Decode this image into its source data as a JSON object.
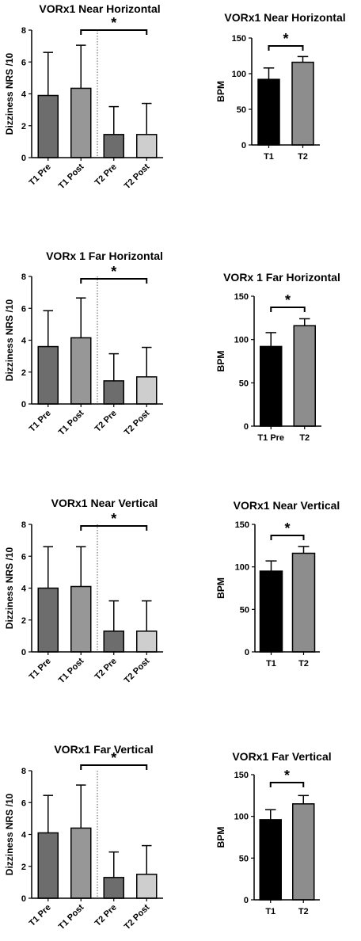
{
  "chart_data": [
    {
      "type": "bar",
      "title": "VORx1 Near Horizontal",
      "ylabel": "Dizziness NRS /10",
      "ylim": [
        0,
        8
      ],
      "yticks": [
        0,
        2,
        4,
        6,
        8
      ],
      "categories": [
        "T1 Pre",
        "T1 Post",
        "T2 Pre",
        "T2 Post"
      ],
      "values": [
        3.9,
        4.35,
        1.45,
        1.45
      ],
      "error": [
        2.7,
        2.7,
        1.75,
        1.95
      ],
      "colors": [
        "#6d6d6d",
        "#979797",
        "#6d6d6d",
        "#cecece"
      ],
      "significance": {
        "from": 1,
        "to": 3,
        "label": "*"
      },
      "divider_after": 1
    },
    {
      "type": "bar",
      "title": "VORx1 Near Horizontal",
      "ylabel": "BPM",
      "ylim": [
        0,
        150
      ],
      "yticks": [
        0,
        50,
        100,
        150
      ],
      "categories": [
        "T1",
        "T2"
      ],
      "values": [
        92,
        116
      ],
      "error": [
        16,
        8
      ],
      "colors": [
        "#000000",
        "#8d8d8d"
      ],
      "significance": {
        "from": 0,
        "to": 1,
        "label": "*"
      }
    },
    {
      "type": "bar",
      "title": "VORx 1 Far Horizontal",
      "ylabel": "Dizziness NRS /10",
      "ylim": [
        0,
        8
      ],
      "yticks": [
        0,
        2,
        4,
        6,
        8
      ],
      "categories": [
        "T1 Pre",
        "T1 Post",
        "T2 Pre",
        "T2 Post"
      ],
      "values": [
        3.6,
        4.15,
        1.45,
        1.7
      ],
      "error": [
        2.25,
        2.5,
        1.7,
        1.85
      ],
      "colors": [
        "#6d6d6d",
        "#979797",
        "#6d6d6d",
        "#cecece"
      ],
      "significance": {
        "from": 1,
        "to": 3,
        "label": "*"
      },
      "divider_after": 1
    },
    {
      "type": "bar",
      "title": "VORx 1 Far Horizontal",
      "ylabel": "BPM",
      "ylim": [
        0,
        150
      ],
      "yticks": [
        0,
        50,
        100,
        150
      ],
      "categories": [
        "T1 Pre",
        "T2"
      ],
      "values": [
        92,
        116
      ],
      "error": [
        16,
        8
      ],
      "colors": [
        "#000000",
        "#8d8d8d"
      ],
      "significance": {
        "from": 0,
        "to": 1,
        "label": "*"
      }
    },
    {
      "type": "bar",
      "title": "VORx1 Near Vertical",
      "ylabel": "Dizziness NRS /10",
      "ylim": [
        0,
        8
      ],
      "yticks": [
        0,
        2,
        4,
        6,
        8
      ],
      "categories": [
        "T1 Pre",
        "T1 Post",
        "T2 Pre",
        "T2 Post"
      ],
      "values": [
        4.0,
        4.1,
        1.3,
        1.3
      ],
      "error": [
        2.6,
        2.5,
        1.9,
        1.9
      ],
      "colors": [
        "#6d6d6d",
        "#979797",
        "#6d6d6d",
        "#cecece"
      ],
      "significance": {
        "from": 1,
        "to": 3,
        "label": "*"
      },
      "divider_after": 1
    },
    {
      "type": "bar",
      "title": "VORx1 Near Vertical",
      "ylabel": "BPM",
      "ylim": [
        0,
        150
      ],
      "yticks": [
        0,
        50,
        100,
        150
      ],
      "categories": [
        "T1",
        "T2"
      ],
      "values": [
        95,
        116
      ],
      "error": [
        12,
        8
      ],
      "colors": [
        "#000000",
        "#8d8d8d"
      ],
      "significance": {
        "from": 0,
        "to": 1,
        "label": "*"
      }
    },
    {
      "type": "bar",
      "title": "VORx1 Far Vertical",
      "ylabel": "Dizziness NRS /10",
      "ylim": [
        0,
        8
      ],
      "yticks": [
        0,
        2,
        4,
        6,
        8
      ],
      "categories": [
        "T1 Pre",
        "T1 Post",
        "T2 Pre",
        "T2 Post"
      ],
      "values": [
        4.1,
        4.4,
        1.3,
        1.5
      ],
      "error": [
        2.35,
        2.7,
        1.6,
        1.8
      ],
      "colors": [
        "#6d6d6d",
        "#979797",
        "#6d6d6d",
        "#cecece"
      ],
      "significance": {
        "from": 1,
        "to": 3,
        "label": "*"
      },
      "divider_after": 1
    },
    {
      "type": "bar",
      "title": "VORx1 Far Vertical",
      "ylabel": "BPM",
      "ylim": [
        0,
        150
      ],
      "yticks": [
        0,
        50,
        100,
        150
      ],
      "categories": [
        "T1",
        "T2"
      ],
      "values": [
        96,
        115
      ],
      "error": [
        12,
        10
      ],
      "colors": [
        "#000000",
        "#8d8d8d"
      ],
      "significance": {
        "from": 0,
        "to": 1,
        "label": "*"
      }
    }
  ]
}
